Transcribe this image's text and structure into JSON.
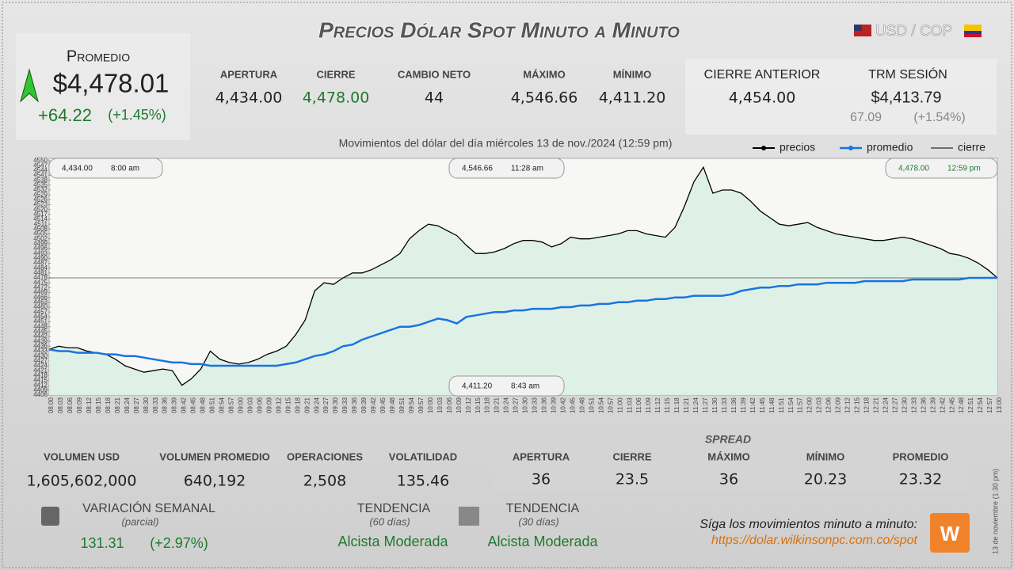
{
  "header": {
    "title": "Precios Dólar Spot Minuto a Minuto",
    "pair": "USD / COP"
  },
  "average": {
    "label": "Promedio",
    "price": "$4,478.01",
    "change": "+64.22",
    "change_pct": "(+1.45%)"
  },
  "stats": [
    {
      "label": "APERTURA",
      "value": "4,434.00"
    },
    {
      "label": "CIERRE",
      "value": "4,478.00"
    },
    {
      "label": "CAMBIO NETO",
      "value": "44"
    },
    {
      "label": "MÁXIMO",
      "value": "4,546.66"
    },
    {
      "label": "MÍNIMO",
      "value": "4,411.20"
    }
  ],
  "previous_close": {
    "label": "CIERRE ANTERIOR",
    "value": "4,454.00"
  },
  "trm": {
    "label": "TRM SESIÓN",
    "value": "$4,413.79",
    "change": "67.09",
    "change_pct": "(+1.54%)"
  },
  "chart_data": {
    "type": "line",
    "title": "Movimientos del dólar del día miércoles 13 de nov./2024 (12:59 pm)",
    "categories": [
      "08:00",
      "08:03",
      "08:06",
      "08:09",
      "08:12",
      "08:15",
      "08:18",
      "08:21",
      "08:24",
      "08:27",
      "08:30",
      "08:33",
      "08:36",
      "08:39",
      "08:42",
      "08:45",
      "08:48",
      "08:51",
      "08:54",
      "08:57",
      "09:00",
      "09:03",
      "09:06",
      "09:09",
      "09:12",
      "09:15",
      "09:18",
      "09:21",
      "09:24",
      "09:27",
      "09:30",
      "09:33",
      "09:36",
      "09:39",
      "09:42",
      "09:45",
      "09:48",
      "09:51",
      "09:54",
      "09:57",
      "10:00",
      "10:03",
      "10:06",
      "10:09",
      "10:12",
      "10:15",
      "10:18",
      "10:21",
      "10:24",
      "10:27",
      "10:30",
      "10:33",
      "10:36",
      "10:39",
      "10:42",
      "10:45",
      "10:48",
      "10:51",
      "10:54",
      "10:57",
      "11:00",
      "11:03",
      "11:06",
      "11:09",
      "11:12",
      "11:15",
      "11:18",
      "11:21",
      "11:24",
      "11:27",
      "11:30",
      "11:33",
      "11:36",
      "11:39",
      "11:42",
      "11:45",
      "11:48",
      "11:51",
      "11:54",
      "11:57",
      "12:00",
      "12:03",
      "12:06",
      "12:09",
      "12:12",
      "12:15",
      "12:18",
      "12:21",
      "12:24",
      "12:27",
      "12:30",
      "12:33",
      "12:36",
      "12:39",
      "12:42",
      "12:45",
      "12:48",
      "12:51",
      "12:54",
      "12:57",
      "13:00"
    ],
    "series": [
      {
        "name": "precios",
        "color": "#000000",
        "values": [
          4434,
          4436,
          4435,
          4435,
          4433,
          4432,
          4431,
          4428,
          4424,
          4422,
          4420,
          4421,
          4422,
          4421,
          4412,
          4416,
          4422,
          4433,
          4428,
          4426,
          4425,
          4426,
          4428,
          4431,
          4433,
          4436,
          4443,
          4452,
          4470,
          4475,
          4474,
          4478,
          4481,
          4481,
          4483,
          4486,
          4489,
          4493,
          4502,
          4507,
          4511,
          4510,
          4507,
          4504,
          4498,
          4493,
          4493,
          4494,
          4496,
          4499,
          4501,
          4501,
          4500,
          4497,
          4499,
          4503,
          4502,
          4502,
          4503,
          4504,
          4505,
          4507,
          4507,
          4505,
          4504,
          4503,
          4509,
          4522,
          4537,
          4546,
          4530,
          4532,
          4532,
          4530,
          4525,
          4519,
          4515,
          4511,
          4510,
          4511,
          4512,
          4509,
          4507,
          4505,
          4504,
          4503,
          4502,
          4501,
          4501,
          4502,
          4503,
          4502,
          4500,
          4498,
          4496,
          4493,
          4492,
          4490,
          4487,
          4483,
          4478
        ]
      },
      {
        "name": "promedio",
        "color": "#1a73e0",
        "values": [
          4434,
          4433,
          4433,
          4432,
          4432,
          4432,
          4431,
          4431,
          4430,
          4430,
          4429,
          4428,
          4427,
          4426,
          4426,
          4425,
          4425,
          4424,
          4424,
          4424,
          4424,
          4424,
          4424,
          4424,
          4424,
          4425,
          4426,
          4428,
          4430,
          4431,
          4433,
          4436,
          4437,
          4440,
          4442,
          4444,
          4446,
          4448,
          4448,
          4449,
          4451,
          4453,
          4452,
          4450,
          4454,
          4455,
          4456,
          4457,
          4457,
          4458,
          4458,
          4459,
          4459,
          4459,
          4460,
          4460,
          4461,
          4461,
          4462,
          4462,
          4463,
          4463,
          4464,
          4464,
          4465,
          4465,
          4466,
          4466,
          4467,
          4467,
          4467,
          4467,
          4468,
          4470,
          4471,
          4472,
          4472,
          4473,
          4473,
          4474,
          4474,
          4474,
          4475,
          4475,
          4475,
          4475,
          4476,
          4476,
          4476,
          4476,
          4476,
          4477,
          4477,
          4477,
          4477,
          4477,
          4477,
          4478,
          4478,
          4478,
          4478
        ]
      }
    ],
    "close_line": {
      "name": "cierre",
      "color": "#000000",
      "value": 4478
    },
    "fill_color": "#dcefe6",
    "ylim": [
      4406,
      4550
    ],
    "yticks": [
      4406,
      4409,
      4412,
      4415,
      4418,
      4421,
      4424,
      4427,
      4430,
      4433,
      4436,
      4439,
      4442,
      4445,
      4448,
      4451,
      4454,
      4457,
      4460,
      4463,
      4466,
      4469,
      4472,
      4475,
      4478,
      4481,
      4484,
      4487,
      4490,
      4493,
      4496,
      4499,
      4502,
      4505,
      4508,
      4511,
      4514,
      4517,
      4520,
      4523,
      4526,
      4529,
      4532,
      4535,
      4538,
      4541,
      4544,
      4547,
      4550
    ],
    "legend": "top-right",
    "annotations": [
      {
        "price": "4,434.00",
        "time": "8:00 am"
      },
      {
        "price": "4,546.66",
        "time": "11:28 am"
      },
      {
        "price": "4,411.20",
        "time": "8:43 am"
      },
      {
        "price": "4,478.00",
        "time": "12:59 pm"
      }
    ]
  },
  "volume_stats": [
    {
      "label": "VOLUMEN USD",
      "value": "1,605,602,000"
    },
    {
      "label": "VOLUMEN PROMEDIO",
      "value": "640,192"
    },
    {
      "label": "OPERACIONES",
      "value": "2,508"
    },
    {
      "label": "VOLATILIDAD",
      "value": "135.46"
    }
  ],
  "spread": {
    "title": "SPREAD",
    "items": [
      {
        "label": "APERTURA",
        "value": "36"
      },
      {
        "label": "CIERRE",
        "value": "23.5"
      },
      {
        "label": "MÁXIMO",
        "value": "36"
      },
      {
        "label": "MÍNIMO",
        "value": "20.23"
      },
      {
        "label": "PROMEDIO",
        "value": "23.32"
      }
    ]
  },
  "weekly": {
    "label": "VARIACIÓN SEMANAL",
    "note": "(parcial)",
    "value": "131.31",
    "pct": "(+2.97%)"
  },
  "trends": [
    {
      "label": "TENDENCIA",
      "note": "(60 días)",
      "value": "Alcista Moderada"
    },
    {
      "label": "TENDENCIA",
      "note": "(30 días)",
      "value": "Alcista Moderada"
    }
  ],
  "follow": {
    "text": "Síga los movimientos minuto a minuto:",
    "url": "https://dolar.wilkinsonpc.com.co/spot"
  },
  "timestamp": "13 de noviembre (1:30 pm)"
}
